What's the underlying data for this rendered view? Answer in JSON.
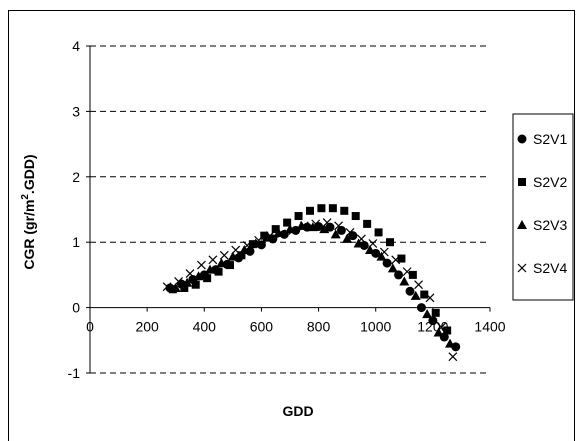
{
  "chart_data": {
    "type": "scatter",
    "title": "",
    "xlabel": "GDD",
    "ylabel_main": "CGR (gr/m",
    "ylabel_sup": "2",
    "ylabel_tail": ".GDD)",
    "xlim": [
      0,
      1400
    ],
    "ylim": [
      -1,
      4
    ],
    "x_ticks": [
      0,
      200,
      400,
      600,
      800,
      1000,
      1200,
      1400
    ],
    "y_ticks": [
      -1,
      0,
      1,
      2,
      3,
      4
    ],
    "x_tick_labels": [
      "0",
      "200",
      "400",
      "600",
      "800",
      "1000",
      "1200",
      "1400"
    ],
    "y_tick_labels": [
      "-1",
      "0",
      "1",
      "2",
      "3",
      "4"
    ],
    "grid": "horizontal dashed",
    "legend_position": "right",
    "series": [
      {
        "name": "S2V1",
        "marker": "circle",
        "points": [
          [
            280,
            0.3
          ],
          [
            320,
            0.36
          ],
          [
            360,
            0.43
          ],
          [
            400,
            0.5
          ],
          [
            440,
            0.58
          ],
          [
            480,
            0.66
          ],
          [
            520,
            0.76
          ],
          [
            560,
            0.86
          ],
          [
            600,
            0.96
          ],
          [
            640,
            1.05
          ],
          [
            680,
            1.12
          ],
          [
            720,
            1.18
          ],
          [
            760,
            1.23
          ],
          [
            800,
            1.24
          ],
          [
            840,
            1.23
          ],
          [
            880,
            1.18
          ],
          [
            920,
            1.1
          ],
          [
            960,
            0.95
          ],
          [
            1000,
            0.83
          ],
          [
            1040,
            0.68
          ],
          [
            1080,
            0.5
          ],
          [
            1120,
            0.25
          ],
          [
            1160,
            0.0
          ],
          [
            1200,
            -0.2
          ],
          [
            1240,
            -0.45
          ],
          [
            1280,
            -0.6
          ]
        ]
      },
      {
        "name": "S2V2",
        "marker": "square",
        "points": [
          [
            290,
            0.28
          ],
          [
            330,
            0.3
          ],
          [
            370,
            0.35
          ],
          [
            410,
            0.45
          ],
          [
            450,
            0.55
          ],
          [
            490,
            0.65
          ],
          [
            530,
            0.8
          ],
          [
            570,
            0.97
          ],
          [
            610,
            1.1
          ],
          [
            650,
            1.2
          ],
          [
            690,
            1.3
          ],
          [
            730,
            1.4
          ],
          [
            770,
            1.48
          ],
          [
            810,
            1.52
          ],
          [
            850,
            1.52
          ],
          [
            890,
            1.48
          ],
          [
            930,
            1.4
          ],
          [
            970,
            1.28
          ],
          [
            1010,
            1.15
          ],
          [
            1050,
            1.0
          ],
          [
            1090,
            0.75
          ],
          [
            1130,
            0.5
          ],
          [
            1170,
            0.2
          ],
          [
            1210,
            -0.08
          ],
          [
            1250,
            -0.35
          ]
        ]
      },
      {
        "name": "S2V3",
        "marker": "triangle",
        "points": [
          [
            300,
            0.3
          ],
          [
            340,
            0.38
          ],
          [
            380,
            0.48
          ],
          [
            420,
            0.58
          ],
          [
            460,
            0.68
          ],
          [
            500,
            0.78
          ],
          [
            540,
            0.88
          ],
          [
            580,
            0.98
          ],
          [
            620,
            1.07
          ],
          [
            660,
            1.14
          ],
          [
            700,
            1.2
          ],
          [
            740,
            1.25
          ],
          [
            780,
            1.23
          ],
          [
            820,
            1.2
          ],
          [
            860,
            1.12
          ],
          [
            900,
            1.05
          ],
          [
            940,
            0.98
          ],
          [
            980,
            0.88
          ],
          [
            1020,
            0.78
          ],
          [
            1060,
            0.6
          ],
          [
            1100,
            0.4
          ],
          [
            1140,
            0.18
          ],
          [
            1180,
            -0.1
          ],
          [
            1220,
            -0.38
          ],
          [
            1260,
            -0.55
          ]
        ]
      },
      {
        "name": "S2V4",
        "marker": "cross",
        "points": [
          [
            270,
            0.32
          ],
          [
            310,
            0.4
          ],
          [
            350,
            0.52
          ],
          [
            390,
            0.65
          ],
          [
            430,
            0.73
          ],
          [
            470,
            0.8
          ],
          [
            510,
            0.88
          ],
          [
            550,
            0.95
          ],
          [
            590,
            1.03
          ],
          [
            630,
            1.1
          ],
          [
            670,
            1.13
          ],
          [
            710,
            1.18
          ],
          [
            750,
            1.25
          ],
          [
            790,
            1.28
          ],
          [
            830,
            1.3
          ],
          [
            870,
            1.25
          ],
          [
            910,
            1.15
          ],
          [
            950,
            1.05
          ],
          [
            990,
            0.98
          ],
          [
            1030,
            0.85
          ],
          [
            1070,
            0.73
          ],
          [
            1110,
            0.55
          ],
          [
            1150,
            0.35
          ],
          [
            1190,
            0.15
          ],
          [
            1230,
            -0.3
          ],
          [
            1270,
            -0.75
          ]
        ]
      }
    ]
  }
}
